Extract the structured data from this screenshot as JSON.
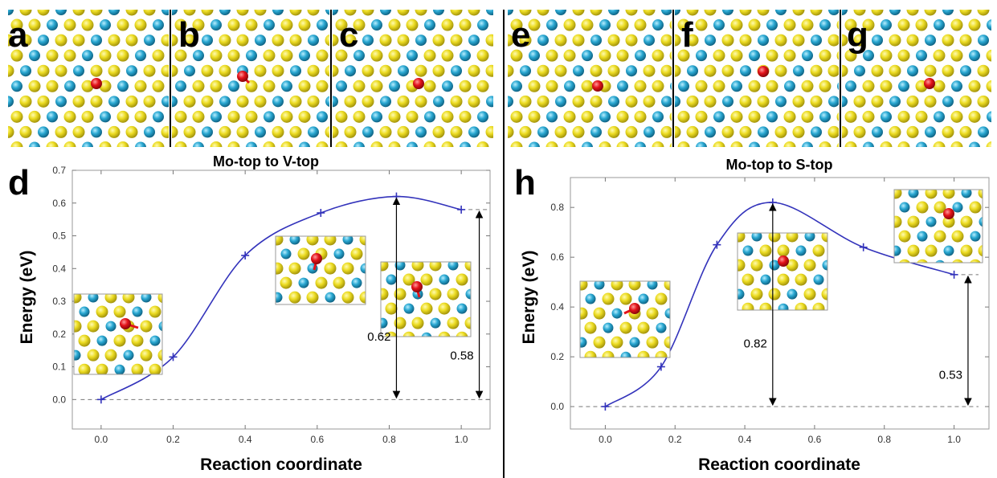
{
  "top_panels": [
    {
      "id": "a",
      "label": "a",
      "show_bond": false
    },
    {
      "id": "b",
      "label": "b",
      "show_bond": true
    },
    {
      "id": "c",
      "label": "c",
      "show_bond": false
    },
    {
      "id": "e",
      "label": "e",
      "show_bond": false
    },
    {
      "id": "f",
      "label": "f",
      "show_bond": false
    },
    {
      "id": "g",
      "label": "g",
      "show_bond": false
    }
  ],
  "atom_colors": {
    "sulfur": "#e6d81a",
    "molybdenum": "#27a7cf",
    "adatom": "#e3131a"
  },
  "chart_data": [
    {
      "panel_label": "d",
      "type": "line",
      "title": "Mo-top to V-top",
      "xlabel": "Reaction coordinate",
      "ylabel": "Energy (eV)",
      "xlim": [
        -0.08,
        1.08
      ],
      "ylim": [
        -0.09,
        0.7
      ],
      "xticks": [
        "0.0",
        "0.2",
        "0.4",
        "0.6",
        "0.8",
        "1.0"
      ],
      "yticks": [
        "0.0",
        "0.1",
        "0.2",
        "0.3",
        "0.4",
        "0.5",
        "0.6",
        "0.7"
      ],
      "series": [
        {
          "x": [
            0.0,
            0.2,
            0.4,
            0.61,
            0.82,
            1.0
          ],
          "y": [
            0.0,
            0.13,
            0.44,
            0.57,
            0.62,
            0.58
          ]
        }
      ],
      "annotations": [
        {
          "text": "0.62",
          "x": 0.82,
          "y_from": 0.0,
          "y_to": 0.62
        },
        {
          "text": "0.58",
          "x": 1.05,
          "y_from": 0.0,
          "y_to": 0.58
        }
      ],
      "line_color": "#3333bb",
      "grid": false
    },
    {
      "panel_label": "h",
      "type": "line",
      "title": "Mo-top to S-top",
      "xlabel": "Reaction coordinate",
      "ylabel": "Energy (eV)",
      "xlim": [
        -0.1,
        1.1
      ],
      "ylim": [
        -0.09,
        0.92
      ],
      "xticks": [
        "0.0",
        "0.2",
        "0.4",
        "0.6",
        "0.8",
        "1.0"
      ],
      "yticks": [
        "0.0",
        "0.2",
        "0.4",
        "0.6",
        "0.8"
      ],
      "series": [
        {
          "x": [
            0.0,
            0.16,
            0.32,
            0.48,
            0.74,
            1.0
          ],
          "y": [
            0.0,
            0.16,
            0.65,
            0.82,
            0.64,
            0.53
          ]
        }
      ],
      "annotations": [
        {
          "text": "0.82",
          "x": 0.48,
          "y_from": 0.0,
          "y_to": 0.82
        },
        {
          "text": "0.53",
          "x": 1.04,
          "y_from": 0.0,
          "y_to": 0.53
        }
      ],
      "line_color": "#3333bb",
      "grid": false
    }
  ]
}
